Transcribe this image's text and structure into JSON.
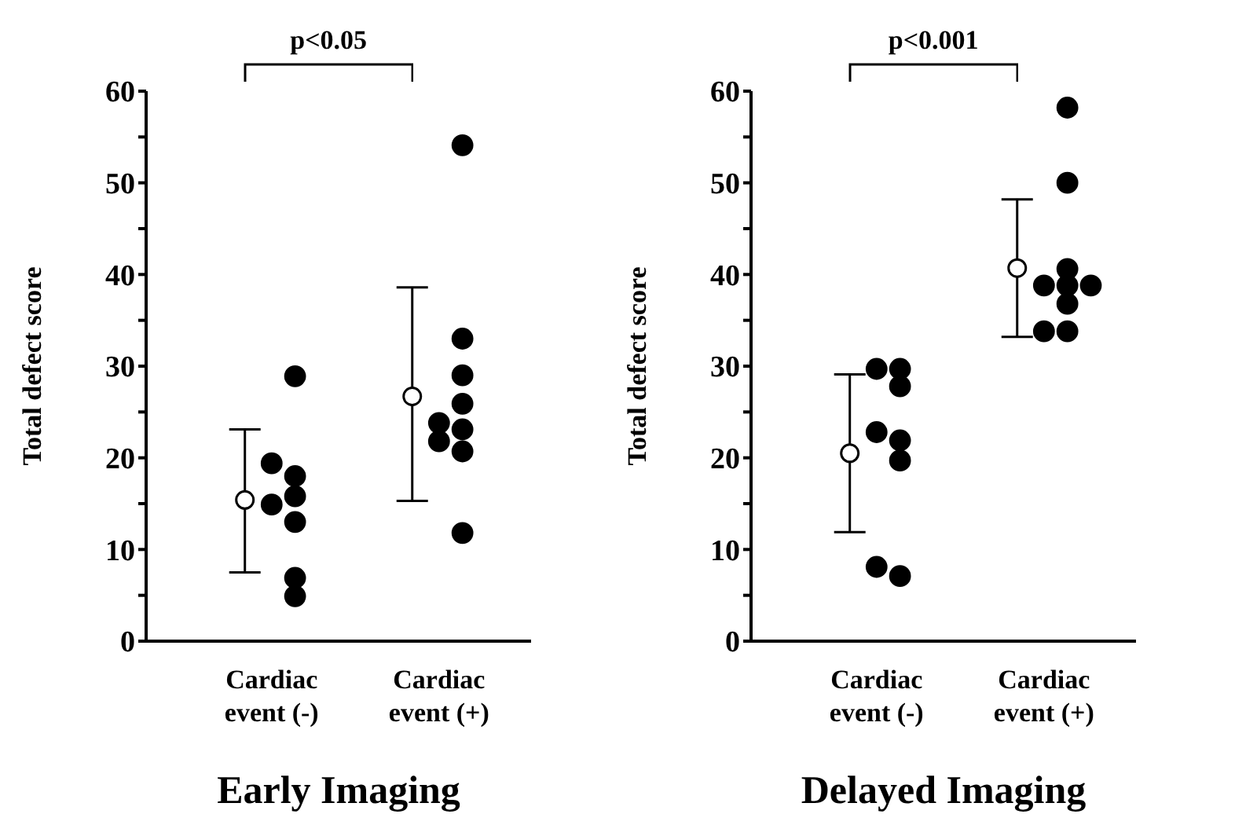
{
  "chart_data": [
    {
      "type": "scatter",
      "title": "Early Imaging",
      "ylabel": "Total defect score",
      "categories": [
        "Cardiac event (-)",
        "Cardiac event (+)"
      ],
      "ylim": [
        0,
        60
      ],
      "yticks": [
        0,
        {
          "value": 5,
          "label": null
        },
        10,
        {
          "value": 15,
          "label": null
        },
        20,
        {
          "value": 25,
          "label": null
        },
        30,
        {
          "value": 35,
          "label": null
        },
        40,
        {
          "value": 45,
          "label": null
        },
        50,
        {
          "value": 55,
          "label": null
        },
        60
      ],
      "marker": "circle",
      "annotations": [
        "p<0.05"
      ],
      "series": [
        {
          "color": "#ffffff",
          "x": [
            "Cardiac event (-)",
            "Cardiac event (+)"
          ],
          "values": [
            15.4,
            26.7
          ],
          "errors": [
            [
              7.5,
              23.1
            ],
            [
              15.3,
              38.6
            ]
          ]
        },
        {
          "color": "#000000",
          "x": [
            "Cardiac event (-)",
            "Cardiac event (-)",
            "Cardiac event (+)",
            "Cardiac event (+)"
          ],
          "values": [
            19.4,
            14.9,
            23.8,
            21.8
          ]
        },
        {
          "color": "#000000",
          "x": [
            "Cardiac event (-)",
            "Cardiac event (-)",
            "Cardiac event (-)",
            "Cardiac event (-)",
            "Cardiac event (-)",
            "Cardiac event (-)",
            "Cardiac event (+)",
            "Cardiac event (+)",
            "Cardiac event (+)",
            "Cardiac event (+)",
            "Cardiac event (+)",
            "Cardiac event (+)",
            "Cardiac event (+)"
          ],
          "values": [
            28.9,
            18.0,
            15.8,
            13.0,
            6.9,
            4.9,
            54.1,
            33.0,
            29.0,
            25.9,
            23.1,
            20.7,
            11.8
          ]
        }
      ]
    },
    {
      "type": "scatter",
      "title": "Delayed Imaging",
      "ylabel": "Total defect score",
      "categories": [
        "Cardiac event (-)",
        "Cardiac event (+)"
      ],
      "ylim": [
        0,
        60
      ],
      "yticks": [
        0,
        {
          "value": 5,
          "label": null
        },
        10,
        {
          "value": 15,
          "label": null
        },
        20,
        {
          "value": 25,
          "label": null
        },
        30,
        {
          "value": 35,
          "label": null
        },
        40,
        {
          "value": 45,
          "label": null
        },
        50,
        {
          "value": 55,
          "label": null
        },
        60
      ],
      "marker": "circle",
      "annotations": [
        "p<0.001"
      ],
      "series": [
        {
          "color": "#ffffff",
          "x": [
            "Cardiac event (-)",
            "Cardiac event (+)"
          ],
          "values": [
            20.5,
            40.7
          ],
          "errors": [
            [
              11.9,
              29.1
            ],
            [
              33.2,
              48.2
            ]
          ]
        },
        {
          "color": "#000000",
          "x": [
            "Cardiac event (-)",
            "Cardiac event (-)",
            "Cardiac event (-)",
            "Cardiac event (+)",
            "Cardiac event (+)"
          ],
          "values": [
            29.7,
            22.8,
            8.1,
            38.8,
            33.8
          ]
        },
        {
          "color": "#000000",
          "x": [
            "Cardiac event (-)",
            "Cardiac event (-)",
            "Cardiac event (-)",
            "Cardiac event (-)",
            "Cardiac event (-)",
            "Cardiac event (+)",
            "Cardiac event (+)",
            "Cardiac event (+)",
            "Cardiac event (+)",
            "Cardiac event (+)",
            "Cardiac event (+)"
          ],
          "values": [
            29.7,
            27.8,
            21.9,
            19.7,
            7.1,
            58.2,
            50.0,
            40.6,
            38.8,
            36.8,
            33.8
          ]
        },
        {
          "color": "#000000",
          "x": [
            "Cardiac event (+)"
          ],
          "values": [
            38.8
          ]
        }
      ]
    }
  ]
}
